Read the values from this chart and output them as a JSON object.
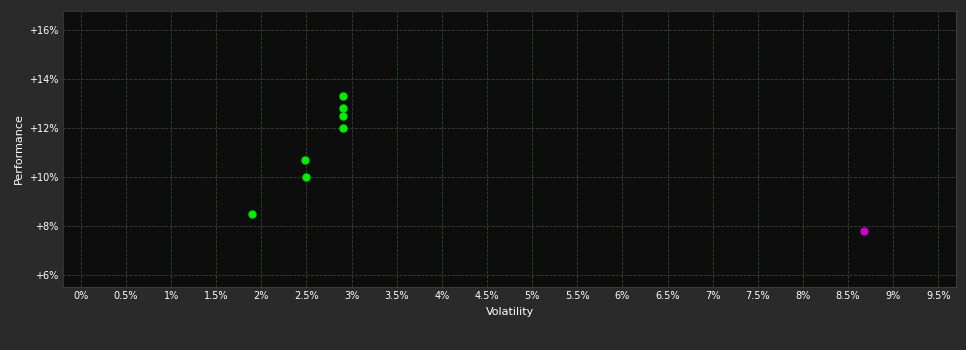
{
  "background_color": "#2a2a2a",
  "plot_bg_color": "#0d0d0d",
  "grid_color": "#2d4a2d",
  "text_color": "#ffffff",
  "xlabel": "Volatility",
  "ylabel": "Performance",
  "x_ticks": [
    0.0,
    0.005,
    0.01,
    0.015,
    0.02,
    0.025,
    0.03,
    0.035,
    0.04,
    0.045,
    0.05,
    0.055,
    0.06,
    0.065,
    0.07,
    0.075,
    0.08,
    0.085,
    0.09,
    0.095
  ],
  "y_ticks": [
    0.06,
    0.08,
    0.1,
    0.12,
    0.14,
    0.16
  ],
  "xlim": [
    -0.002,
    0.097
  ],
  "ylim": [
    0.055,
    0.168
  ],
  "green_points": [
    [
      0.019,
      0.085
    ],
    [
      0.0248,
      0.107
    ],
    [
      0.025,
      0.1
    ],
    [
      0.029,
      0.133
    ],
    [
      0.029,
      0.128
    ],
    [
      0.029,
      0.125
    ],
    [
      0.029,
      0.12
    ]
  ],
  "magenta_point": [
    0.0868,
    0.078
  ],
  "green_color": "#00ee00",
  "magenta_color": "#cc00cc",
  "marker_size": 25
}
